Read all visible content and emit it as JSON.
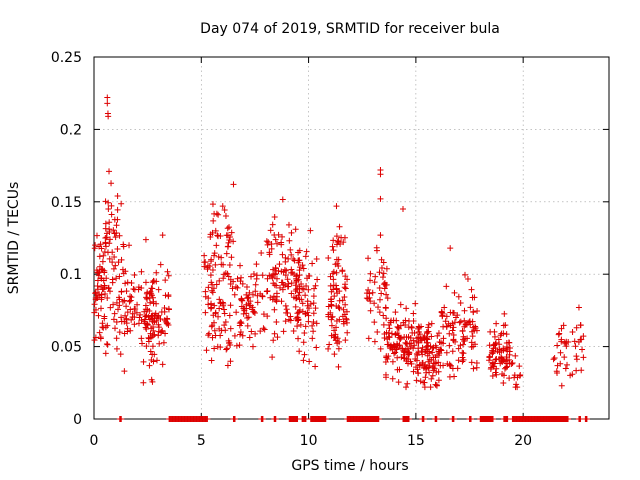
{
  "chart_data": {
    "type": "scatter",
    "title": "Day 074 of 2019, SRMTID for receiver bula",
    "xlabel": "GPS time / hours",
    "ylabel": "SRMTID / TECUs",
    "xlim": [
      0,
      24
    ],
    "ylim": [
      0,
      0.25
    ],
    "x_ticks": [
      0,
      5,
      10,
      15,
      20
    ],
    "x_tick_labels": [
      "0",
      "5",
      "10",
      "15",
      "20"
    ],
    "y_ticks": [
      0,
      0.05,
      0.1,
      0.15,
      0.2,
      0.25
    ],
    "y_tick_labels": [
      "0",
      "0.05",
      "0.1",
      "0.15",
      "0.2",
      "0.25"
    ],
    "grid": true,
    "marker": "plus",
    "series_color": "#dd0000",
    "clusters": [
      {
        "x": [
          0.0,
          1.4
        ],
        "y_center": 0.09,
        "spread": 0.028,
        "count": 110
      },
      {
        "x": [
          0.5,
          1.3
        ],
        "y_center": 0.13,
        "spread": 0.015,
        "count": 25
      },
      {
        "x": [
          1.4,
          2.8
        ],
        "y_center": 0.075,
        "spread": 0.022,
        "count": 80
      },
      {
        "x": [
          2.4,
          3.5
        ],
        "y_center": 0.07,
        "spread": 0.022,
        "count": 80
      },
      {
        "x": [
          5.1,
          6.6
        ],
        "y_center": 0.09,
        "spread": 0.028,
        "count": 100
      },
      {
        "x": [
          5.5,
          6.3
        ],
        "y_center": 0.13,
        "spread": 0.012,
        "count": 20
      },
      {
        "x": [
          6.6,
          8.0
        ],
        "y_center": 0.075,
        "spread": 0.02,
        "count": 70
      },
      {
        "x": [
          8.0,
          9.6
        ],
        "y_center": 0.095,
        "spread": 0.025,
        "count": 120
      },
      {
        "x": [
          9.4,
          10.4
        ],
        "y_center": 0.08,
        "spread": 0.022,
        "count": 70
      },
      {
        "x": [
          10.9,
          11.8
        ],
        "y_center": 0.085,
        "spread": 0.03,
        "count": 90
      },
      {
        "x": [
          12.7,
          13.7
        ],
        "y_center": 0.085,
        "spread": 0.025,
        "count": 50
      },
      {
        "x": [
          13.6,
          15.0
        ],
        "y_center": 0.052,
        "spread": 0.015,
        "count": 110
      },
      {
        "x": [
          15.0,
          16.2
        ],
        "y_center": 0.045,
        "spread": 0.014,
        "count": 110
      },
      {
        "x": [
          16.2,
          17.9
        ],
        "y_center": 0.06,
        "spread": 0.018,
        "count": 100
      },
      {
        "x": [
          18.4,
          19.4
        ],
        "y_center": 0.045,
        "spread": 0.012,
        "count": 80
      },
      {
        "x": [
          19.4,
          19.9
        ],
        "y_center": 0.035,
        "spread": 0.01,
        "count": 12
      },
      {
        "x": [
          21.4,
          22.9
        ],
        "y_center": 0.05,
        "spread": 0.015,
        "count": 40
      }
    ],
    "outliers": [
      {
        "x": 0.62,
        "y": 0.222
      },
      {
        "x": 0.62,
        "y": 0.218
      },
      {
        "x": 0.65,
        "y": 0.211
      },
      {
        "x": 0.66,
        "y": 0.209
      },
      {
        "x": 0.7,
        "y": 0.171
      },
      {
        "x": 1.1,
        "y": 0.154
      },
      {
        "x": 3.2,
        "y": 0.127
      },
      {
        "x": 6.5,
        "y": 0.162
      },
      {
        "x": 6.0,
        "y": 0.147
      },
      {
        "x": 11.3,
        "y": 0.147
      },
      {
        "x": 13.35,
        "y": 0.172
      },
      {
        "x": 13.35,
        "y": 0.169
      },
      {
        "x": 13.35,
        "y": 0.152
      },
      {
        "x": 14.4,
        "y": 0.145
      },
      {
        "x": 16.6,
        "y": 0.118
      },
      {
        "x": 22.6,
        "y": 0.077
      },
      {
        "x": 21.8,
        "y": 0.023
      },
      {
        "x": 2.3,
        "y": 0.025
      },
      {
        "x": 13.35,
        "y": 0.127
      }
    ],
    "zero_intervals": [
      [
        1.2,
        1.3
      ],
      [
        3.5,
        5.3
      ],
      [
        6.5,
        6.6
      ],
      [
        7.8,
        7.9
      ],
      [
        8.4,
        8.5
      ],
      [
        9.1,
        9.5
      ],
      [
        9.7,
        9.9
      ],
      [
        10.1,
        10.8
      ],
      [
        11.8,
        13.3
      ],
      [
        14.4,
        14.7
      ],
      [
        15.3,
        15.4
      ],
      [
        15.9,
        16.0
      ],
      [
        16.7,
        16.8
      ],
      [
        17.5,
        17.6
      ],
      [
        18.0,
        18.6
      ],
      [
        19.1,
        19.3
      ],
      [
        19.5,
        22.1
      ],
      [
        22.6,
        22.7
      ],
      [
        22.9,
        23.0
      ]
    ]
  }
}
